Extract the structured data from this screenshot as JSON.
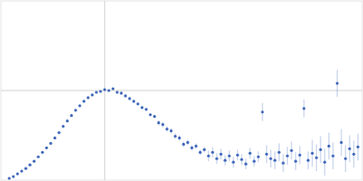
{
  "chart_data": {
    "type": "scatter",
    "x": [
      0.08,
      0.12,
      0.16,
      0.2,
      0.24,
      0.28,
      0.32,
      0.36,
      0.4,
      0.44,
      0.48,
      0.52,
      0.56,
      0.6,
      0.64,
      0.68,
      0.72,
      0.76,
      0.8,
      0.84,
      0.88,
      0.92,
      0.96,
      1.0,
      1.04,
      1.08,
      1.12,
      1.16,
      1.2,
      1.24,
      1.28,
      1.32,
      1.36,
      1.4,
      1.44,
      1.48,
      1.52,
      1.56,
      1.6,
      1.64,
      1.68,
      1.72,
      1.76,
      1.8,
      1.84,
      1.88,
      1.92,
      1.96,
      2.0,
      2.04,
      2.08,
      2.12,
      2.16,
      2.2,
      2.24,
      2.28,
      2.32,
      2.36,
      2.4,
      2.44,
      2.48,
      2.52,
      2.56,
      2.6,
      2.64,
      2.68,
      2.72,
      2.76,
      2.8,
      2.84,
      2.88,
      2.92,
      2.96,
      3.0,
      3.04,
      3.08,
      3.12,
      3.16,
      3.2,
      3.24,
      3.28,
      3.32,
      3.36,
      3.4,
      3.44
    ],
    "values": [
      0.02,
      0.04,
      0.07,
      0.1,
      0.13,
      0.17,
      0.21,
      0.26,
      0.31,
      0.36,
      0.41,
      0.47,
      0.53,
      0.6,
      0.66,
      0.72,
      0.78,
      0.83,
      0.88,
      0.92,
      0.95,
      0.98,
      0.99,
      1.01,
      1.0,
      1.02,
      0.98,
      0.97,
      0.94,
      0.91,
      0.88,
      0.85,
      0.81,
      0.79,
      0.73,
      0.71,
      0.64,
      0.62,
      0.57,
      0.55,
      0.49,
      0.47,
      0.4,
      0.42,
      0.36,
      0.38,
      0.31,
      0.34,
      0.27,
      0.31,
      0.24,
      0.29,
      0.22,
      0.27,
      0.2,
      0.28,
      0.23,
      0.18,
      0.3,
      0.21,
      0.26,
      0.76,
      0.29,
      0.24,
      0.22,
      0.31,
      0.19,
      0.27,
      0.33,
      0.21,
      0.28,
      0.8,
      0.22,
      0.3,
      0.25,
      0.34,
      0.2,
      0.38,
      0.27,
      1.08,
      0.42,
      0.24,
      0.35,
      0.29,
      0.37
    ],
    "errors": [
      0.005,
      0.005,
      0.005,
      0.005,
      0.005,
      0.005,
      0.005,
      0.005,
      0.005,
      0.005,
      0.005,
      0.005,
      0.01,
      0.01,
      0.01,
      0.01,
      0.01,
      0.01,
      0.01,
      0.01,
      0.01,
      0.01,
      0.01,
      0.015,
      0.015,
      0.015,
      0.015,
      0.015,
      0.015,
      0.015,
      0.015,
      0.015,
      0.015,
      0.015,
      0.015,
      0.015,
      0.03,
      0.03,
      0.03,
      0.03,
      0.03,
      0.03,
      0.03,
      0.03,
      0.03,
      0.03,
      0.03,
      0.03,
      0.06,
      0.06,
      0.06,
      0.06,
      0.06,
      0.06,
      0.06,
      0.06,
      0.06,
      0.06,
      0.06,
      0.06,
      0.06,
      0.1,
      0.1,
      0.1,
      0.1,
      0.1,
      0.1,
      0.1,
      0.1,
      0.1,
      0.1,
      0.1,
      0.1,
      0.15,
      0.15,
      0.15,
      0.15,
      0.15,
      0.15,
      0.15,
      0.15,
      0.15,
      0.15,
      0.15,
      0.15
    ],
    "color": "#3a63b8",
    "xlim": [
      0,
      3.48
    ],
    "xticks": [
      1
    ],
    "ylim": [
      0,
      2
    ],
    "yticks": [
      1
    ],
    "grid": true,
    "tick_labels": false
  }
}
